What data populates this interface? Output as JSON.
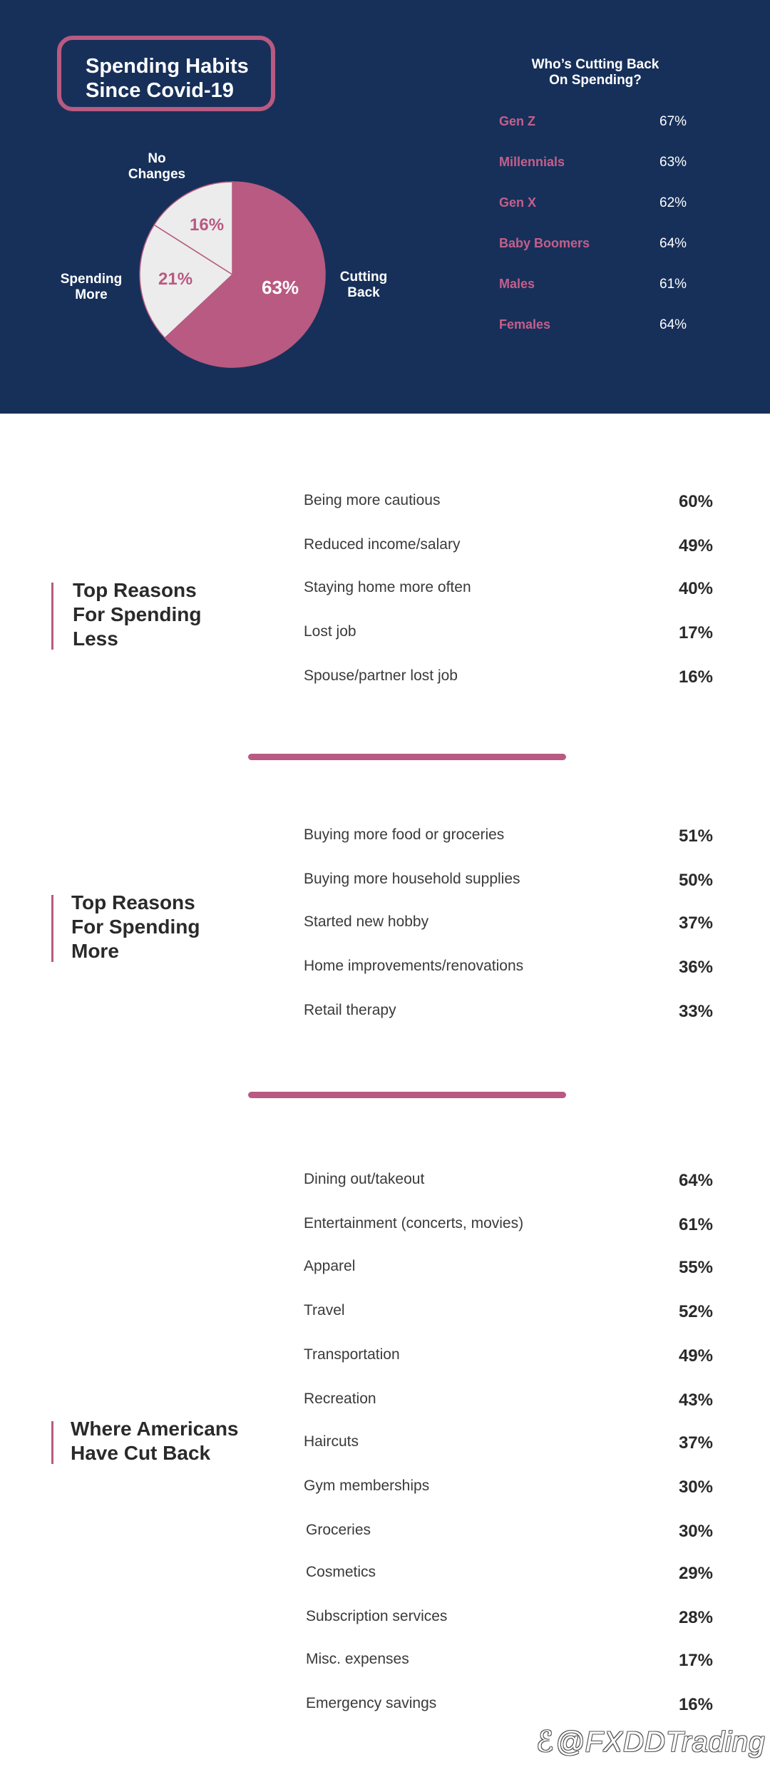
{
  "header": {
    "title_line1": "Spending Habits",
    "title_line2": "Since Covid-19"
  },
  "chart_data": [
    {
      "type": "pie",
      "slices": [
        {
          "label": "Cutting Back",
          "value": 63,
          "display": "63%",
          "color": "#b85a81",
          "text_color": "#ffffff"
        },
        {
          "label": "Spending More",
          "value": 21,
          "display": "21%",
          "color": "#ececec",
          "text_color": "#b85a81"
        },
        {
          "label": "No Changes",
          "value": 16,
          "display": "16%",
          "color": "#ececec",
          "text_color": "#b85a81"
        }
      ],
      "outer_labels": {
        "cutting_back": [
          "Cutting",
          "Back"
        ],
        "spending_more": [
          "Spending",
          "More"
        ],
        "no_changes": [
          "No",
          "Changes"
        ]
      }
    },
    {
      "type": "table",
      "title_lines": [
        "Who’s Cutting Back",
        "On Spending?"
      ],
      "rows": [
        {
          "group": "Gen Z",
          "value": "67%"
        },
        {
          "group": "Millennials",
          "value": "63%"
        },
        {
          "group": "Gen X",
          "value": "62%"
        },
        {
          "group": "Baby Boomers",
          "value": "64%"
        },
        {
          "group": "Males",
          "value": "61%"
        },
        {
          "group": "Females",
          "value": "64%"
        }
      ]
    },
    {
      "type": "table",
      "title_lines": [
        "Top Reasons",
        "For Spending",
        "Less"
      ],
      "rows": [
        {
          "label": "Being more cautious",
          "value": "60%"
        },
        {
          "label": "Reduced income/salary",
          "value": "49%"
        },
        {
          "label": "Staying home more often",
          "value": "40%"
        },
        {
          "label": "Lost job",
          "value": "17%"
        },
        {
          "label": "Spouse/partner lost job",
          "value": "16%"
        }
      ]
    },
    {
      "type": "table",
      "title_lines": [
        "Top Reasons",
        "For Spending",
        "More"
      ],
      "rows": [
        {
          "label": "Buying more food or groceries",
          "value": "51%"
        },
        {
          "label": "Buying more household supplies",
          "value": "50%"
        },
        {
          "label": "Started new hobby",
          "value": "37%"
        },
        {
          "label": "Home improvements/renovations",
          "value": "36%"
        },
        {
          "label": "Retail therapy",
          "value": "33%"
        }
      ]
    },
    {
      "type": "table",
      "title_lines": [
        "Where Americans",
        "Have Cut Back"
      ],
      "rows": [
        {
          "label": "Dining out/takeout",
          "value": "64%"
        },
        {
          "label": "Entertainment (concerts, movies)",
          "value": "61%"
        },
        {
          "label": "Apparel",
          "value": "55%"
        },
        {
          "label": "Travel",
          "value": "52%"
        },
        {
          "label": "Transportation",
          "value": "49%"
        },
        {
          "label": "Recreation",
          "value": "43%"
        },
        {
          "label": "Haircuts",
          "value": "37%"
        },
        {
          "label": "Gym memberships",
          "value": "30%"
        },
        {
          "label": "Groceries",
          "value": "30%"
        },
        {
          "label": "Cosmetics",
          "value": "29%"
        },
        {
          "label": "Subscription services",
          "value": "28%"
        },
        {
          "label": "Misc. expenses",
          "value": "17%"
        },
        {
          "label": "Emergency savings",
          "value": "16%"
        }
      ]
    }
  ],
  "watermark": "@FXDDTrading",
  "colors": {
    "navy": "#17305a",
    "accent": "#b85a81",
    "light": "#ececec"
  }
}
